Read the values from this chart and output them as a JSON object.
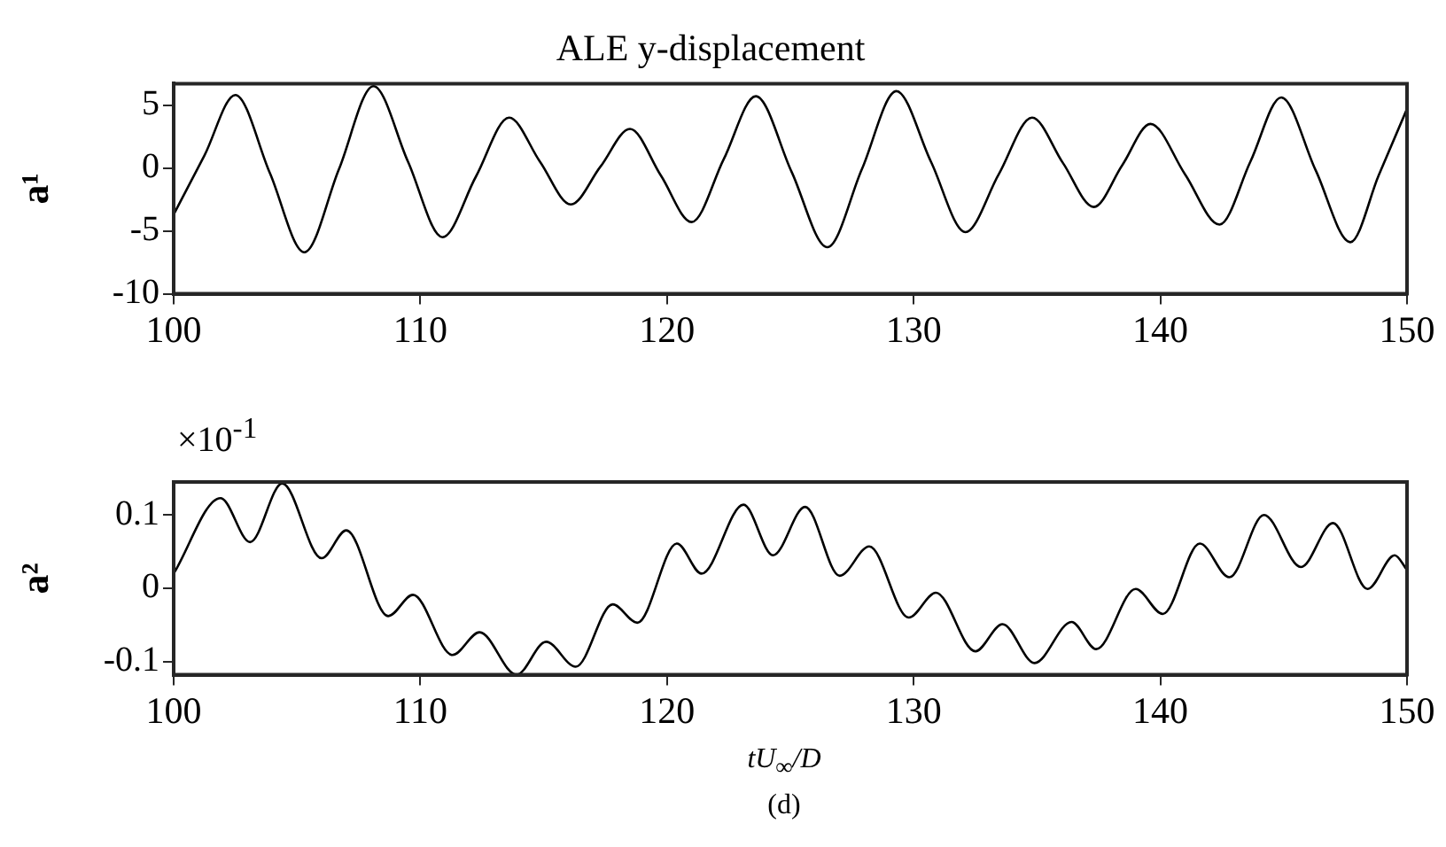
{
  "chart_data": [
    {
      "type": "line",
      "title": "ALE y-displacement",
      "ylabel": "a¹",
      "xlim": [
        100,
        150
      ],
      "xticks": [
        100,
        110,
        120,
        130,
        140,
        150
      ],
      "ylim": [
        -10,
        6.7
      ],
      "yticks": [
        -10,
        -5,
        0,
        5
      ],
      "grid": false,
      "legend": false,
      "marker": "none",
      "line_style": "solid",
      "series": [
        {
          "color": "#000000",
          "x": [
            100,
            101.25,
            102.5,
            103.9,
            105.3,
            106.7,
            108.1,
            109.5,
            110.9,
            112.25,
            113.6,
            114.85,
            116.1,
            117.3,
            118.5,
            119.75,
            121,
            122.3,
            123.6,
            125.05,
            126.5,
            127.9,
            129.3,
            130.7,
            132.1,
            133.45,
            134.8,
            136.05,
            137.3,
            138.45,
            139.6,
            141,
            142.4,
            143.65,
            144.9,
            146.3,
            147.7,
            148.85,
            150
          ],
          "values": [
            -3.7,
            1.0,
            5.8,
            -0.4,
            -6.7,
            -0.1,
            6.5,
            0.5,
            -5.5,
            -0.7,
            4.0,
            0.5,
            -2.9,
            0.1,
            3.1,
            -0.6,
            -4.3,
            0.7,
            5.7,
            -0.3,
            -6.3,
            -0.1,
            6.1,
            0.5,
            -5.1,
            -0.5,
            4.0,
            0.4,
            -3.1,
            0.2,
            3.5,
            -0.5,
            -4.5,
            0.5,
            5.6,
            -0.2,
            -5.9,
            -0.6,
            4.7
          ]
        }
      ]
    },
    {
      "type": "line",
      "ylabel": "a²",
      "xlabel": "tU$_{∞}$/D",
      "annotations": [
        "×10$^{-1}$",
        "(d)"
      ],
      "xlim": [
        100,
        150
      ],
      "xticks": [
        100,
        110,
        120,
        130,
        140,
        150
      ],
      "ylim": [
        -0.118,
        0.145
      ],
      "yticks": [
        -0.1,
        0,
        0.1
      ],
      "grid": false,
      "legend": false,
      "marker": "none",
      "line_style": "solid",
      "series": [
        {
          "color": "#000000",
          "x": [
            100,
            101.9,
            103.1,
            104.4,
            106.0,
            107.0,
            108.7,
            109.7,
            111.3,
            112.4,
            113.9,
            115.1,
            116.3,
            117.8,
            118.8,
            120.4,
            121.4,
            123.1,
            124.3,
            125.6,
            127.0,
            128.2,
            129.8,
            130.9,
            132.5,
            133.6,
            134.9,
            136.4,
            137.4,
            139.0,
            140.1,
            141.6,
            142.8,
            144.2,
            145.7,
            147.0,
            148.4,
            149.5,
            150
          ],
          "values": [
            0.02,
            0.123,
            0.063,
            0.143,
            0.041,
            0.079,
            -0.038,
            -0.009,
            -0.091,
            -0.06,
            -0.118,
            -0.073,
            -0.107,
            -0.022,
            -0.047,
            0.061,
            0.02,
            0.114,
            0.045,
            0.111,
            0.017,
            0.057,
            -0.04,
            -0.006,
            -0.086,
            -0.049,
            -0.102,
            -0.046,
            -0.083,
            -0.001,
            -0.035,
            0.061,
            0.015,
            0.1,
            0.029,
            0.089,
            -0.001,
            0.045,
            0.025
          ]
        }
      ]
    }
  ]
}
